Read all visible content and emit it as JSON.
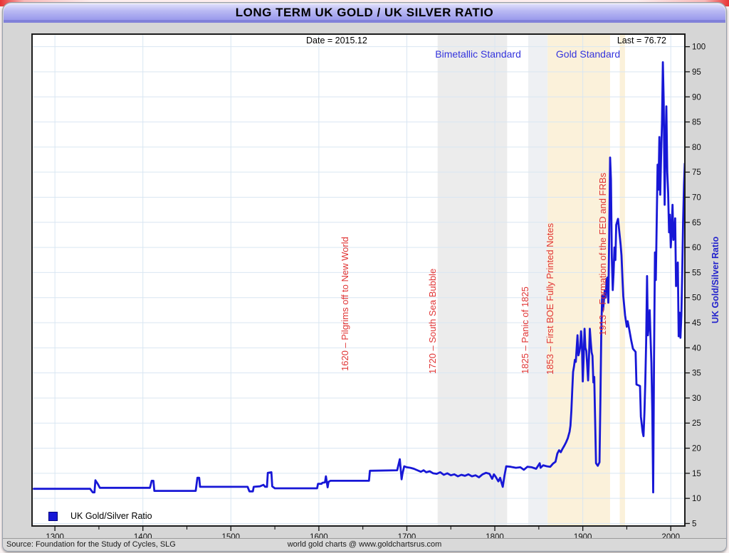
{
  "window": {
    "title": "LONG TERM UK GOLD / UK SILVER RATIO"
  },
  "footer": {
    "source": "Source: Foundation for the Study of Cycles, SLG",
    "credit": "world gold charts @ www.goldchartsrus.com"
  },
  "chart_data": {
    "type": "line",
    "title": "LONG TERM UK GOLD / UK SILVER RATIO",
    "xlabel": "",
    "ylabel": "UK Gold/Silver Ratio",
    "date_label": "Date = 2015.12",
    "last_label": "Last = 76.72",
    "last_value": 76.72,
    "xlim": [
      1274,
      2016
    ],
    "ylim": [
      4.5,
      102.5
    ],
    "x_ticks": [
      1300,
      1400,
      1500,
      1600,
      1700,
      1800,
      1900,
      2000
    ],
    "x_minor_ticks": [
      1350,
      1450,
      1550,
      1650,
      1750,
      1850,
      1950
    ],
    "y_ticks": [
      5,
      10,
      15,
      20,
      25,
      30,
      35,
      40,
      45,
      50,
      55,
      60,
      65,
      70,
      75,
      80,
      85,
      90,
      95,
      100
    ],
    "grid": true,
    "grid_color": "#d9e6f2",
    "line_color": "#1717d6",
    "legend_position": "bottom-left",
    "era_labels": [
      {
        "text": "Bimetallic Standard",
        "center_year": 1781,
        "color": "#3434dd"
      },
      {
        "text": "Gold Standard",
        "center_year": 1906,
        "color": "#3434dd"
      }
    ],
    "bands": [
      {
        "from": 1735,
        "to": 1814,
        "color": "#ececec"
      },
      {
        "from": 1838,
        "to": 1860,
        "color": "#eef0f3"
      },
      {
        "from": 1860,
        "to": 1931,
        "color": "#fbf1da"
      },
      {
        "from": 1942,
        "to": 1948,
        "color": "#fbf1da"
      }
    ],
    "annotations": [
      {
        "year": 1620,
        "text": "1620 – Pilgrims off to New World",
        "bottom_value": 35.4
      },
      {
        "year": 1720,
        "text": "1720 – South Sea Bubble",
        "bottom_value": 34.8
      },
      {
        "year": 1825,
        "text": "1825 – Panic of 1825",
        "bottom_value": 34.8
      },
      {
        "year": 1853,
        "text": "1853 – First BOE Fully Printed Notes",
        "bottom_value": 34.7
      },
      {
        "year": 1913,
        "text": "1913 – Formation of the FED and FRBs",
        "bottom_value": 42.5
      }
    ],
    "series": [
      {
        "name": "UK Gold/Silver Ratio",
        "color": "#1717d6",
        "points": [
          [
            1276,
            11.9
          ],
          [
            1340,
            11.9
          ],
          [
            1343,
            11.2
          ],
          [
            1345,
            11.2
          ],
          [
            1346,
            13.6
          ],
          [
            1349,
            12.8
          ],
          [
            1351,
            12.1
          ],
          [
            1408,
            12.1
          ],
          [
            1410,
            13.5
          ],
          [
            1412,
            13.5
          ],
          [
            1413,
            11.5
          ],
          [
            1460,
            11.5
          ],
          [
            1462,
            14.1
          ],
          [
            1464,
            14.1
          ],
          [
            1465,
            12.3
          ],
          [
            1519,
            12.3
          ],
          [
            1521,
            11.4
          ],
          [
            1525,
            11.4
          ],
          [
            1526,
            12.3
          ],
          [
            1533,
            12.4
          ],
          [
            1537,
            12.7
          ],
          [
            1539,
            12.3
          ],
          [
            1541,
            12.3
          ],
          [
            1542,
            15.1
          ],
          [
            1546,
            15.2
          ],
          [
            1547,
            12.4
          ],
          [
            1550,
            12
          ],
          [
            1598,
            12
          ],
          [
            1599,
            12.9
          ],
          [
            1603,
            12.9
          ],
          [
            1604,
            13.1
          ],
          [
            1607,
            13.2
          ],
          [
            1608,
            14.4
          ],
          [
            1610,
            12.2
          ],
          [
            1611,
            13.3
          ],
          [
            1613,
            13.5
          ],
          [
            1657,
            13.5
          ],
          [
            1658,
            15.5
          ],
          [
            1689,
            15.6
          ],
          [
            1692,
            17.8
          ],
          [
            1694,
            13.8
          ],
          [
            1695,
            14.9
          ],
          [
            1697,
            16.4
          ],
          [
            1700,
            16.2
          ],
          [
            1704,
            16.1
          ],
          [
            1708,
            15.9
          ],
          [
            1712,
            15.6
          ],
          [
            1716,
            15.3
          ],
          [
            1719,
            15.6
          ],
          [
            1722,
            15.2
          ],
          [
            1726,
            15.4
          ],
          [
            1730,
            15
          ],
          [
            1734,
            14.9
          ],
          [
            1738,
            15.2
          ],
          [
            1742,
            14.7
          ],
          [
            1746,
            15
          ],
          [
            1750,
            14.6
          ],
          [
            1754,
            14.8
          ],
          [
            1758,
            14.4
          ],
          [
            1762,
            14.7
          ],
          [
            1766,
            14.5
          ],
          [
            1770,
            14.8
          ],
          [
            1774,
            14.4
          ],
          [
            1778,
            14.6
          ],
          [
            1782,
            14.2
          ],
          [
            1786,
            14.8
          ],
          [
            1790,
            15.1
          ],
          [
            1794,
            14.9
          ],
          [
            1797,
            13.9
          ],
          [
            1799,
            14.8
          ],
          [
            1801,
            14.3
          ],
          [
            1804,
            13.4
          ],
          [
            1806,
            14.1
          ],
          [
            1809,
            12.3
          ],
          [
            1811,
            14.6
          ],
          [
            1813,
            16.4
          ],
          [
            1818,
            16.3
          ],
          [
            1824,
            16.1
          ],
          [
            1829,
            16.2
          ],
          [
            1833,
            15.7
          ],
          [
            1837,
            16.3
          ],
          [
            1842,
            16.2
          ],
          [
            1847,
            15.9
          ],
          [
            1851,
            17
          ],
          [
            1852,
            16.1
          ],
          [
            1855,
            16.6
          ],
          [
            1859,
            16.4
          ],
          [
            1863,
            16.3
          ],
          [
            1866,
            16.9
          ],
          [
            1869,
            17.3
          ],
          [
            1871,
            18.9
          ],
          [
            1873,
            19.6
          ],
          [
            1875,
            19.2
          ],
          [
            1877,
            19.9
          ],
          [
            1879,
            20.5
          ],
          [
            1881,
            21.2
          ],
          [
            1883,
            22
          ],
          [
            1885,
            23.3
          ],
          [
            1886,
            24.5
          ],
          [
            1887,
            27.5
          ],
          [
            1888,
            31.5
          ],
          [
            1889,
            35.2
          ],
          [
            1890,
            36.3
          ],
          [
            1891,
            37.6
          ],
          [
            1892,
            37.2
          ],
          [
            1893,
            39.9
          ],
          [
            1894,
            42.5
          ],
          [
            1895,
            38.5
          ],
          [
            1896,
            39.2
          ],
          [
            1897,
            40.1
          ],
          [
            1898,
            43.3
          ],
          [
            1899,
            40.8
          ],
          [
            1900,
            33.3
          ],
          [
            1901,
            38.2
          ],
          [
            1902,
            43.8
          ],
          [
            1903,
            40
          ],
          [
            1904,
            39.4
          ],
          [
            1906,
            33.5
          ],
          [
            1907,
            38
          ],
          [
            1908,
            43.8
          ],
          [
            1909,
            41.2
          ],
          [
            1910,
            39.1
          ],
          [
            1911,
            38.4
          ],
          [
            1912,
            33.1
          ],
          [
            1913,
            34.2
          ],
          [
            1914,
            26
          ],
          [
            1915,
            17
          ],
          [
            1917,
            16.5
          ],
          [
            1919,
            17.2
          ],
          [
            1920,
            30
          ],
          [
            1921,
            43
          ],
          [
            1922,
            50.5
          ],
          [
            1923,
            47.5
          ],
          [
            1924,
            49.5
          ],
          [
            1925,
            51.5
          ],
          [
            1926,
            50
          ],
          [
            1927,
            53.5
          ],
          [
            1928,
            54
          ],
          [
            1929,
            49
          ],
          [
            1930,
            62
          ],
          [
            1931,
            77.9
          ],
          [
            1932,
            73.5
          ],
          [
            1933,
            58
          ],
          [
            1934,
            51.5
          ],
          [
            1935,
            55
          ],
          [
            1936,
            60
          ],
          [
            1937,
            57.5
          ],
          [
            1938,
            64.5
          ],
          [
            1940,
            65.7
          ],
          [
            1941,
            64
          ],
          [
            1943,
            60.5
          ],
          [
            1944,
            58.4
          ],
          [
            1945,
            54
          ],
          [
            1946,
            50.3
          ],
          [
            1948,
            46.5
          ],
          [
            1950,
            44.2
          ],
          [
            1951,
            45.3
          ],
          [
            1953,
            43.5
          ],
          [
            1955,
            41.5
          ],
          [
            1957,
            39.8
          ],
          [
            1960,
            39.2
          ],
          [
            1961,
            32.7
          ],
          [
            1965,
            32.4
          ],
          [
            1966,
            26.3
          ],
          [
            1968,
            23.2
          ],
          [
            1969,
            22.4
          ],
          [
            1970,
            27
          ],
          [
            1971,
            33
          ],
          [
            1972,
            41
          ],
          [
            1973,
            54.3
          ],
          [
            1974,
            42.5
          ],
          [
            1975,
            44.5
          ],
          [
            1976,
            47.5
          ],
          [
            1977,
            42
          ],
          [
            1978,
            37
          ],
          [
            1979,
            27
          ],
          [
            1980,
            11.2
          ],
          [
            1981,
            38
          ],
          [
            1982,
            59
          ],
          [
            1983,
            53.5
          ],
          [
            1984,
            65.5
          ],
          [
            1985,
            76.5
          ],
          [
            1986,
            71.5
          ],
          [
            1987,
            82
          ],
          [
            1988,
            70.5
          ],
          [
            1989,
            78
          ],
          [
            1990,
            85
          ],
          [
            1991,
            96.9
          ],
          [
            1992,
            89
          ],
          [
            1993,
            68.5
          ],
          [
            1994,
            80
          ],
          [
            1995,
            88.1
          ],
          [
            1996,
            75
          ],
          [
            1997,
            71
          ],
          [
            1998,
            63
          ],
          [
            1999,
            66.5
          ],
          [
            2000,
            60
          ],
          [
            2001,
            63.5
          ],
          [
            2002,
            68.5
          ],
          [
            2003,
            61.5
          ],
          [
            2004,
            62.5
          ],
          [
            2005,
            65.8
          ],
          [
            2006,
            52.3
          ],
          [
            2007,
            55
          ],
          [
            2008,
            57
          ],
          [
            2009,
            42.3
          ],
          [
            2010,
            47
          ],
          [
            2011,
            42
          ],
          [
            2012,
            46.5
          ],
          [
            2013,
            55
          ],
          [
            2014,
            65
          ],
          [
            2015,
            72.5
          ],
          [
            2015.9,
            76.7
          ]
        ]
      }
    ]
  }
}
